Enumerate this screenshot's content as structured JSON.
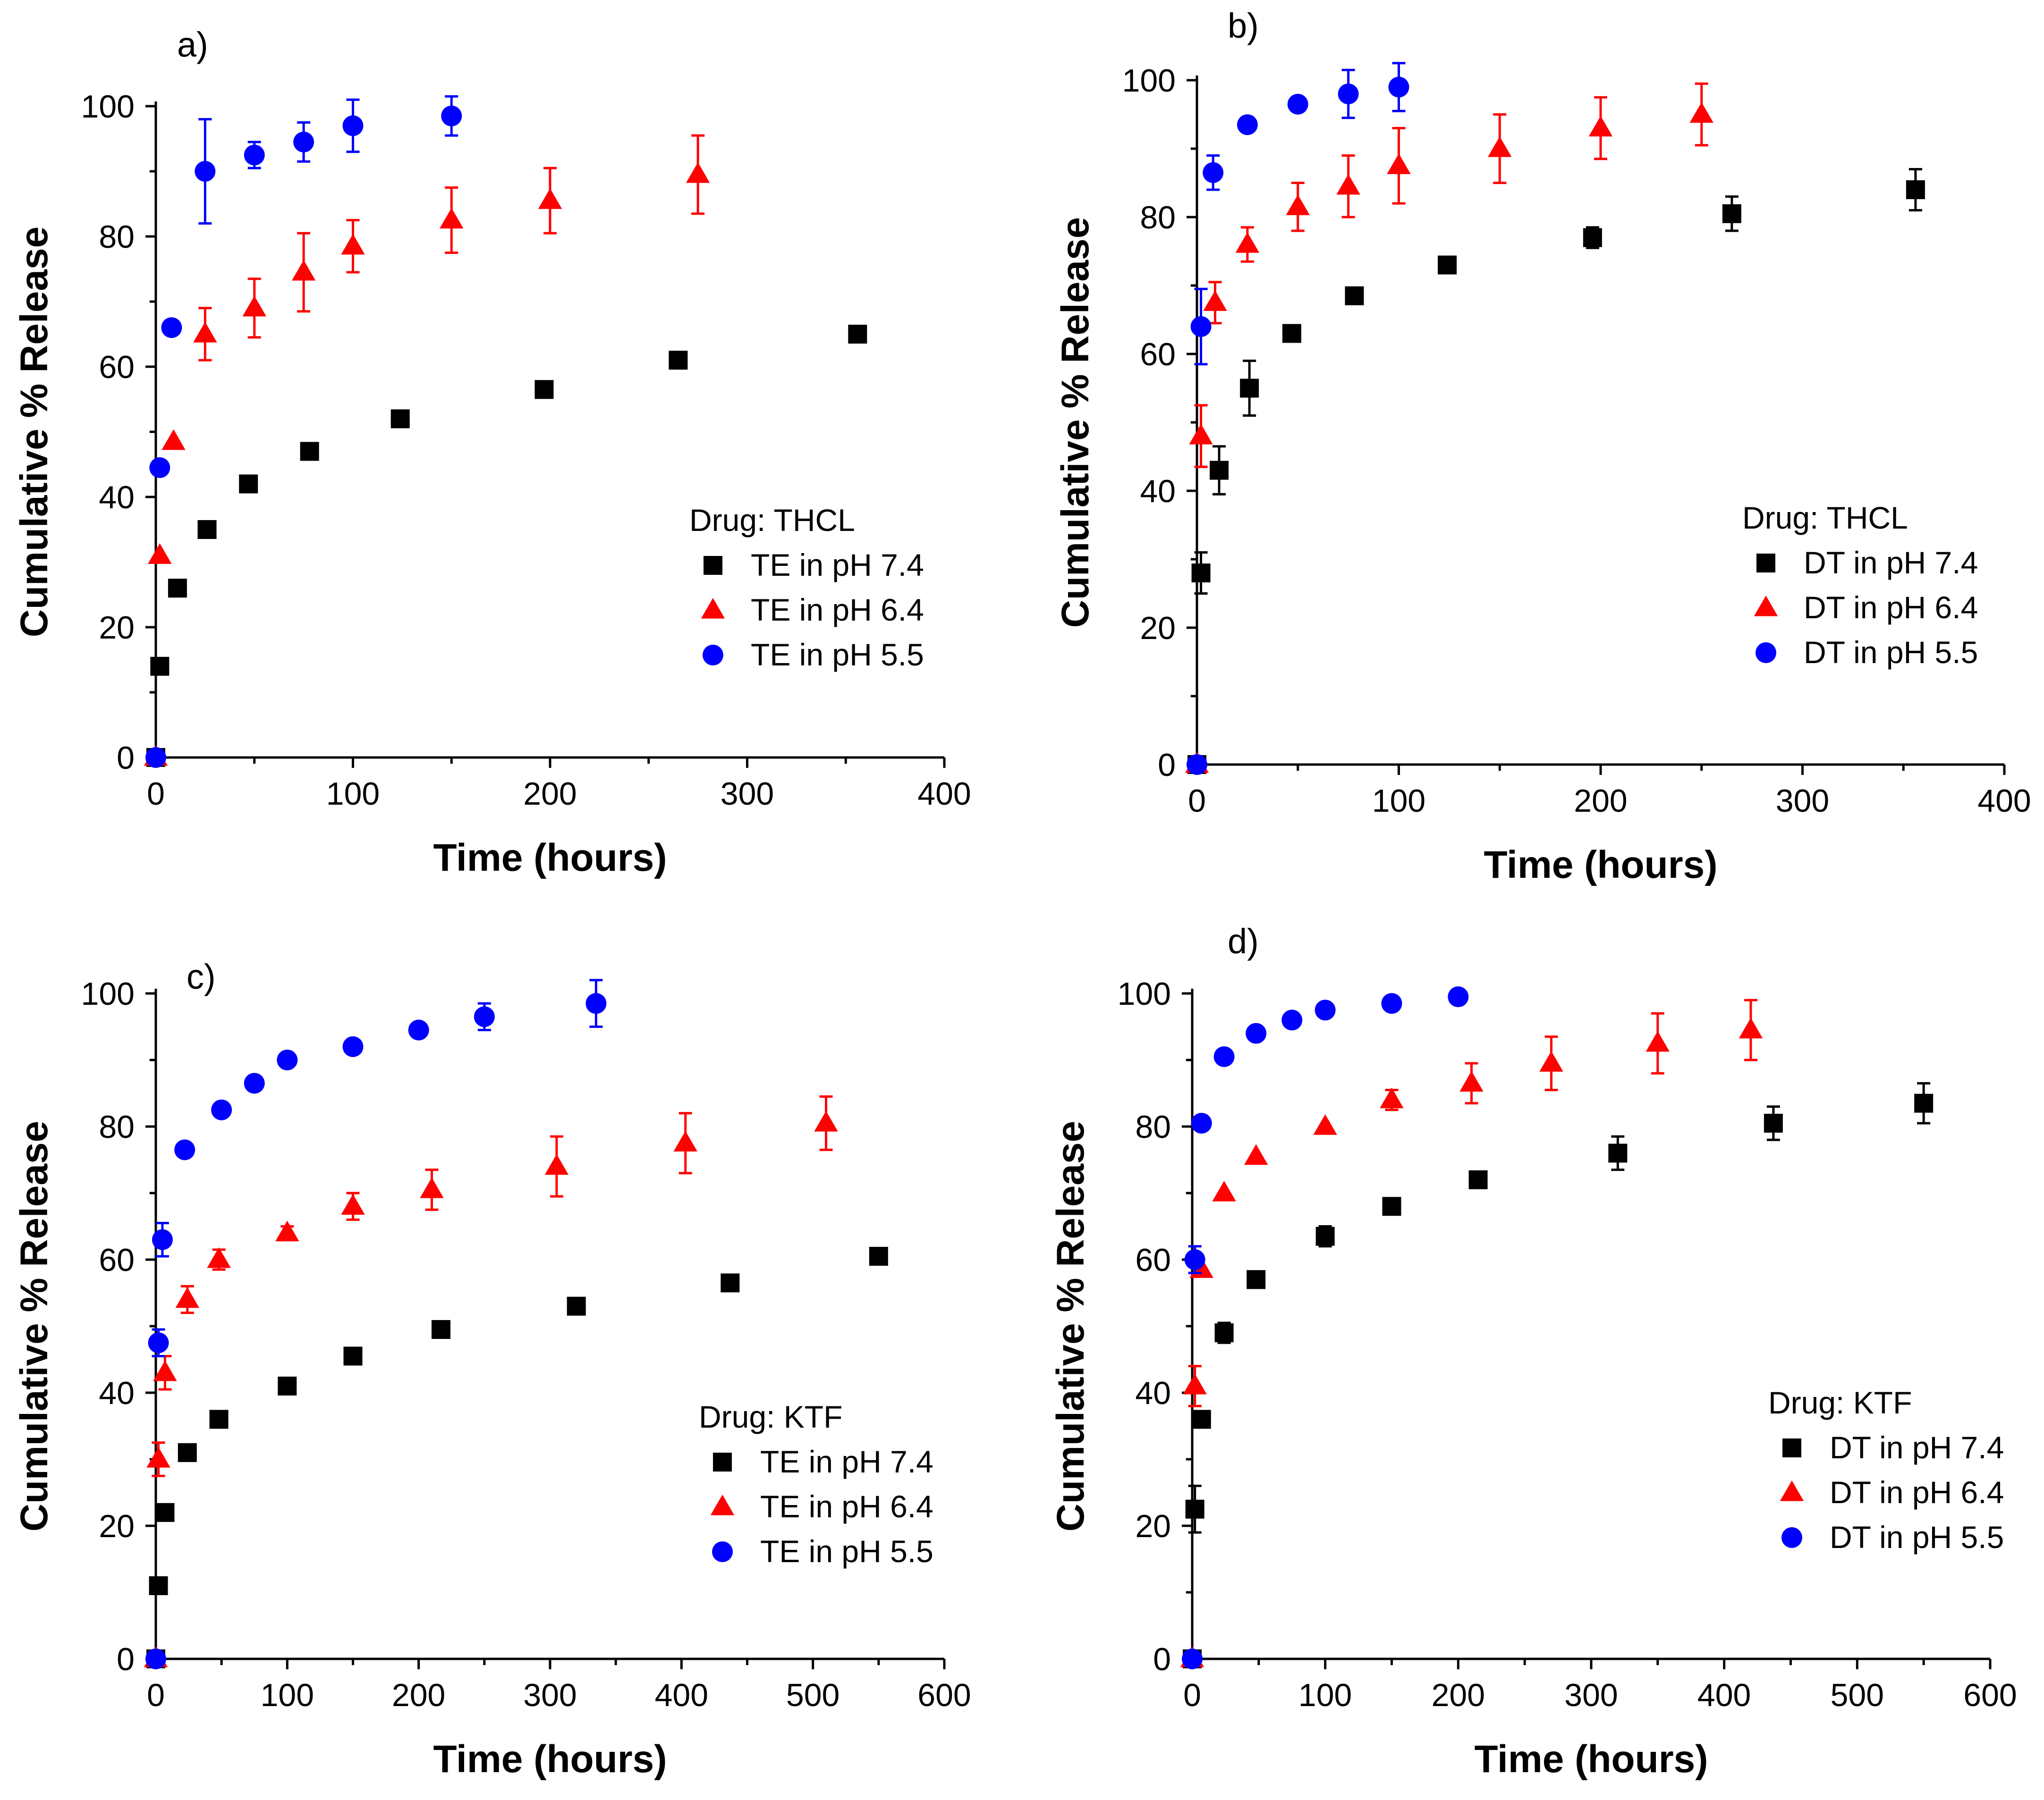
{
  "chart_data": [
    {
      "type": "scatter",
      "panel": "a)",
      "xlabel": "Time (hours)",
      "ylabel": "Cumulative % Release",
      "xlim": [
        0,
        400
      ],
      "ylim": [
        0,
        100
      ],
      "xticks": [
        0,
        100,
        200,
        300,
        400
      ],
      "yticks": [
        0,
        20,
        40,
        60,
        80,
        100
      ],
      "legend_title": "Drug: THCL",
      "legend_position": "bottom-right",
      "series": [
        {
          "name": "TE in pH 7.4",
          "marker": "square",
          "color": "#000000",
          "x": [
            0,
            2,
            11,
            26,
            47,
            78,
            124,
            197,
            265,
            356
          ],
          "y": [
            0,
            14,
            26,
            35,
            42,
            47,
            52,
            56.5,
            61,
            65
          ],
          "err": [
            0,
            0,
            0,
            0,
            0,
            0,
            0,
            0,
            0,
            0
          ]
        },
        {
          "name": "TE in pH 6.4",
          "marker": "triangle",
          "color": "#ff0000",
          "x": [
            0,
            2,
            9,
            25,
            50,
            75,
            100,
            150,
            200,
            275
          ],
          "y": [
            0,
            31,
            48.5,
            65,
            69,
            74.5,
            78.5,
            82.5,
            85.5,
            89.5
          ],
          "err": [
            0,
            0,
            0,
            4,
            4.5,
            6,
            4,
            5,
            5,
            6
          ]
        },
        {
          "name": "TE in pH 5.5",
          "marker": "circle",
          "color": "#0000ff",
          "x": [
            0,
            2,
            8,
            25,
            50,
            75,
            100,
            150
          ],
          "y": [
            0,
            44.5,
            66,
            90,
            92.5,
            94.5,
            97,
            98.5
          ],
          "err": [
            0,
            0,
            0,
            8,
            2,
            3,
            4,
            3
          ]
        }
      ]
    },
    {
      "type": "scatter",
      "panel": "b)",
      "xlabel": "Time (hours)",
      "ylabel": "Cumulative % Release",
      "xlim": [
        0,
        400
      ],
      "ylim": [
        0,
        100
      ],
      "xticks": [
        0,
        100,
        200,
        300,
        400
      ],
      "yticks": [
        0,
        20,
        40,
        60,
        80,
        100
      ],
      "legend_title": "Drug: THCL",
      "legend_position": "bottom-right",
      "series": [
        {
          "name": "DT in pH 7.4",
          "marker": "square",
          "color": "#000000",
          "x": [
            0,
            2,
            11,
            26,
            47,
            78,
            124,
            196,
            265,
            356
          ],
          "y": [
            0,
            28,
            43,
            55,
            63,
            68.5,
            73,
            77,
            80.5,
            84
          ],
          "err": [
            0,
            3,
            3.5,
            4,
            0,
            0,
            0,
            1.5,
            2.5,
            3
          ]
        },
        {
          "name": "DT in pH 6.4",
          "marker": "triangle",
          "color": "#ff0000",
          "x": [
            0,
            2,
            9,
            25,
            50,
            75,
            100,
            150,
            200,
            250
          ],
          "y": [
            0,
            48,
            67.5,
            76,
            81.5,
            84.5,
            87.5,
            90,
            93,
            95
          ],
          "err": [
            0,
            4.5,
            3,
            2.5,
            3.5,
            4.5,
            5.5,
            5,
            4.5,
            4.5
          ]
        },
        {
          "name": "DT in pH 5.5",
          "marker": "circle",
          "color": "#0000ff",
          "x": [
            0,
            2,
            8,
            25,
            50,
            75,
            100
          ],
          "y": [
            0,
            64,
            86.5,
            93.5,
            96.5,
            98,
            99
          ],
          "err": [
            0,
            5.5,
            2.5,
            0,
            0,
            3.5,
            3.5
          ]
        }
      ]
    },
    {
      "type": "scatter",
      "panel": "c)",
      "xlabel": "Time (hours)",
      "ylabel": "Cumulative % Release",
      "xlim": [
        0,
        600
      ],
      "ylim": [
        0,
        100
      ],
      "xticks": [
        0,
        100,
        200,
        300,
        400,
        500,
        600
      ],
      "yticks": [
        0,
        20,
        40,
        60,
        80,
        100
      ],
      "legend_title": "Drug: KTF",
      "legend_position": "bottom-right",
      "series": [
        {
          "name": "TE in pH 7.4",
          "marker": "square",
          "color": "#000000",
          "x": [
            0,
            2,
            7,
            24,
            48,
            100,
            150,
            217,
            320,
            437,
            550
          ],
          "y": [
            0,
            11,
            22,
            31,
            36,
            41,
            45.5,
            49.5,
            53,
            56.5,
            60.5
          ],
          "err": [
            0,
            0,
            0,
            0,
            0,
            0,
            0,
            0,
            0,
            0,
            0
          ]
        },
        {
          "name": "TE in pH 6.4",
          "marker": "triangle",
          "color": "#ff0000",
          "x": [
            0,
            2,
            7,
            24,
            48,
            100,
            150,
            210,
            305,
            403,
            510
          ],
          "y": [
            0,
            30,
            43,
            54,
            60,
            64,
            68,
            70.5,
            74,
            77.5,
            80.5
          ],
          "err": [
            0,
            2.5,
            2.5,
            2,
            1.5,
            1,
            2,
            3,
            4.5,
            4.5,
            4
          ]
        },
        {
          "name": "TE in pH 5.5",
          "marker": "circle",
          "color": "#0000ff",
          "x": [
            0,
            2,
            5,
            22,
            50,
            75,
            100,
            150,
            200,
            250,
            335
          ],
          "y": [
            0,
            47.5,
            63,
            76.5,
            82.5,
            86.5,
            90,
            92,
            94.5,
            96.5,
            98.5
          ],
          "err": [
            0,
            2,
            2.5,
            0,
            0,
            0,
            0,
            0,
            0,
            2,
            3.5
          ]
        }
      ]
    },
    {
      "type": "scatter",
      "panel": "d)",
      "xlabel": "Time (hours)",
      "ylabel": "Cumulative % Release",
      "xlim": [
        0,
        600
      ],
      "ylim": [
        0,
        100
      ],
      "xticks": [
        0,
        100,
        200,
        300,
        400,
        500,
        600
      ],
      "yticks": [
        0,
        20,
        40,
        60,
        80,
        100
      ],
      "legend_title": "Drug: KTF",
      "legend_position": "bottom-right",
      "series": [
        {
          "name": "DT in pH 7.4",
          "marker": "square",
          "color": "#000000",
          "x": [
            0,
            2,
            7,
            24,
            48,
            100,
            150,
            215,
            320,
            437,
            550
          ],
          "y": [
            0,
            22.5,
            36,
            49,
            57,
            63.5,
            68,
            72,
            76,
            80.5,
            83.5
          ],
          "err": [
            0,
            3.5,
            0,
            1.5,
            0,
            1.5,
            0,
            0,
            2.5,
            2.5,
            3
          ]
        },
        {
          "name": "DT in pH 6.4",
          "marker": "triangle",
          "color": "#ff0000",
          "x": [
            0,
            2,
            7,
            24,
            48,
            100,
            150,
            210,
            270,
            350,
            420
          ],
          "y": [
            0,
            41,
            58.5,
            70,
            75.5,
            80,
            84,
            86.5,
            89.5,
            92.5,
            94.5
          ],
          "err": [
            0,
            3,
            0,
            0,
            0,
            0,
            1.5,
            3,
            4,
            4.5,
            4.5
          ]
        },
        {
          "name": "DT in pH 5.5",
          "marker": "circle",
          "color": "#0000ff",
          "x": [
            0,
            2,
            7,
            24,
            48,
            75,
            100,
            150,
            200
          ],
          "y": [
            0,
            60,
            80.5,
            90.5,
            94,
            96,
            97.5,
            98.5,
            99.5
          ],
          "err": [
            0,
            2,
            0,
            0,
            0,
            0,
            0,
            0,
            0
          ]
        }
      ]
    }
  ]
}
